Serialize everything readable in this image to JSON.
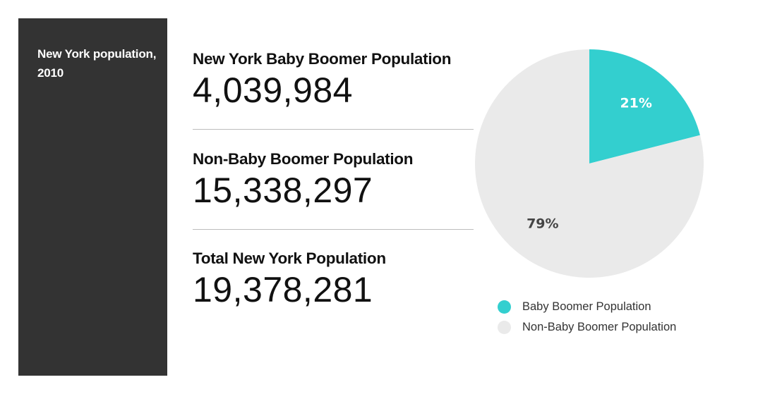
{
  "sidebar": {
    "title": "New York population, 2010"
  },
  "stats": [
    {
      "label": "New York Baby Boomer Population",
      "value": "4,039,984"
    },
    {
      "label": "Non-Baby Boomer Population",
      "value": "15,338,297"
    },
    {
      "label": "Total New York Population",
      "value": "19,378,281"
    }
  ],
  "chart_data": {
    "type": "pie",
    "title": "",
    "slices": [
      {
        "name": "Baby Boomer Population",
        "value": 21,
        "label": "21%",
        "color": "#33cfcf",
        "label_color": "#ffffff"
      },
      {
        "name": "Non-Baby Boomer Population",
        "value": 79,
        "label": "79%",
        "color": "#eaeaea",
        "label_color": "#444444"
      }
    ],
    "legend": {
      "position": "bottom",
      "entries": [
        "Baby Boomer Population",
        "Non-Baby Boomer Population"
      ]
    }
  }
}
